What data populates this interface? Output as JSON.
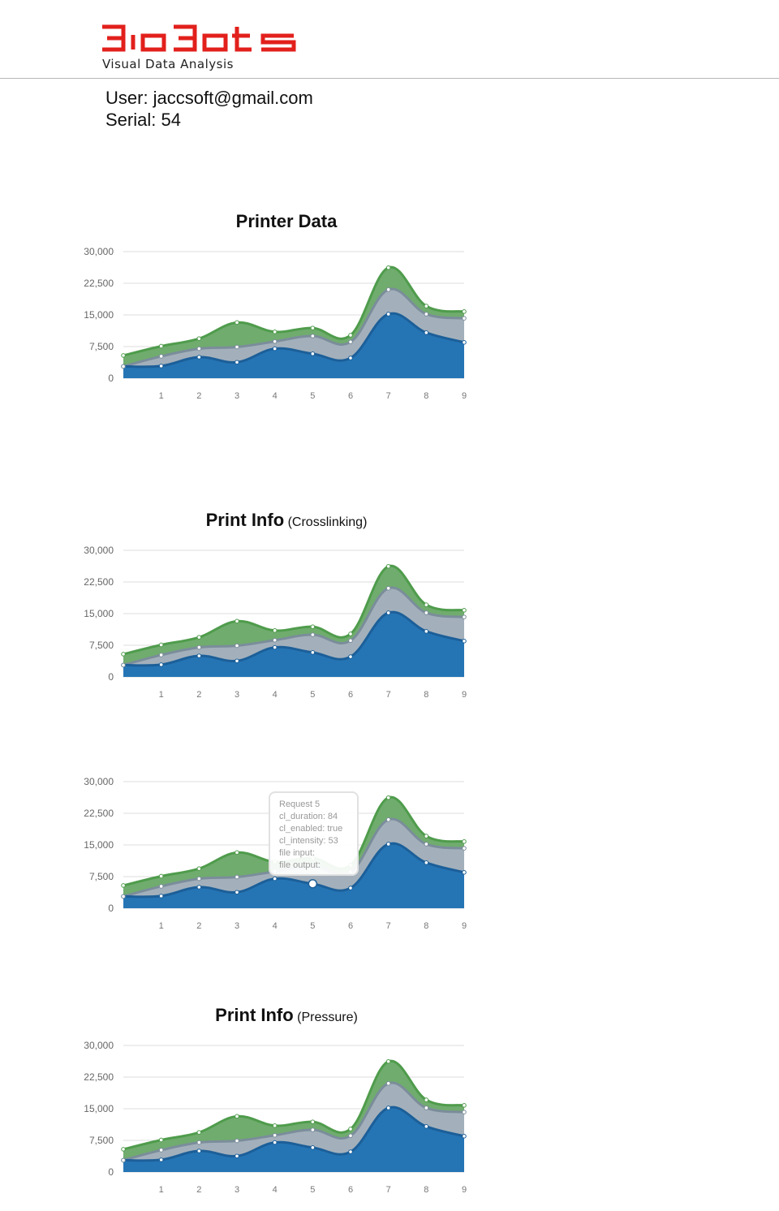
{
  "header": {
    "logo_text": "BioBots",
    "tagline": "Visual Data Analysis"
  },
  "user": {
    "user_line": "User: jaccsoft@gmail.com",
    "serial_line": "Serial: 54"
  },
  "colors": {
    "logo": "#e2201c",
    "blue": "#2575b5",
    "blue_line": "#1c5f99",
    "gray": "#a3b0bb",
    "gray_line": "#7b8d9b",
    "green": "#70ac6e",
    "green_line": "#4f9c4c"
  },
  "charts": [
    {
      "title": "Printer Data",
      "subtitle": ""
    },
    {
      "title": "Print Info",
      "subtitle": "(Crosslinking)"
    },
    {
      "title": "",
      "subtitle": ""
    },
    {
      "title": "Print Info",
      "subtitle": "(Pressure)"
    }
  ],
  "tooltip": {
    "lines": [
      "Request 5",
      "cl_duration: 84",
      "cl_enabled: true",
      "cl_intensity: 53",
      "file input:",
      "file output:"
    ]
  },
  "chart_data": [
    {
      "type": "area",
      "stacked": true,
      "title": "Printer Data",
      "x": [
        0,
        1,
        2,
        3,
        4,
        5,
        6,
        7,
        8,
        9
      ],
      "x_tick_labels": [
        "1",
        "2",
        "3",
        "4",
        "5",
        "6",
        "7",
        "8",
        "9"
      ],
      "y_tick_labels": [
        "0",
        "7,500",
        "15,000",
        "22,500",
        "30,000"
      ],
      "ylim": [
        0,
        30000
      ],
      "grid": true,
      "series": [
        {
          "values": [
            2800,
            2900,
            5000,
            3800,
            7000,
            5800,
            4800,
            15200,
            10800,
            8500
          ]
        },
        {
          "values": [
            2800,
            5200,
            7000,
            7400,
            8700,
            10000,
            8600,
            21000,
            15200,
            14200
          ]
        },
        {
          "values": [
            5400,
            7600,
            9400,
            13200,
            11000,
            11900,
            10200,
            26200,
            17100,
            15800
          ]
        }
      ]
    },
    {
      "type": "area",
      "stacked": true,
      "title": "Print Info (Crosslinking)",
      "x": [
        0,
        1,
        2,
        3,
        4,
        5,
        6,
        7,
        8,
        9
      ],
      "x_tick_labels": [
        "1",
        "2",
        "3",
        "4",
        "5",
        "6",
        "7",
        "8",
        "9"
      ],
      "y_tick_labels": [
        "0",
        "7,500",
        "15,000",
        "22,500",
        "30,000"
      ],
      "ylim": [
        0,
        30000
      ],
      "grid": true,
      "series": [
        {
          "values": [
            2800,
            2900,
            5000,
            3800,
            7000,
            5800,
            4800,
            15200,
            10800,
            8500
          ]
        },
        {
          "values": [
            2800,
            5200,
            7000,
            7400,
            8700,
            10000,
            8600,
            21000,
            15200,
            14200
          ]
        },
        {
          "values": [
            5400,
            7600,
            9400,
            13200,
            11000,
            11900,
            10200,
            26200,
            17100,
            15800
          ]
        }
      ]
    },
    {
      "type": "area",
      "stacked": true,
      "title": "",
      "x": [
        0,
        1,
        2,
        3,
        4,
        5,
        6,
        7,
        8,
        9
      ],
      "x_tick_labels": [
        "1",
        "2",
        "3",
        "4",
        "5",
        "6",
        "7",
        "8",
        "9"
      ],
      "y_tick_labels": [
        "0",
        "7,500",
        "15,000",
        "22,500",
        "30,000"
      ],
      "ylim": [
        0,
        30000
      ],
      "grid": true,
      "highlight_index": 5,
      "series": [
        {
          "values": [
            2800,
            2900,
            5000,
            3800,
            7000,
            5800,
            4800,
            15200,
            10800,
            8500
          ]
        },
        {
          "values": [
            2800,
            5200,
            7000,
            7400,
            8700,
            10000,
            8600,
            21000,
            15200,
            14200
          ]
        },
        {
          "values": [
            5400,
            7600,
            9400,
            13200,
            11000,
            11900,
            10200,
            26200,
            17100,
            15800
          ]
        }
      ]
    },
    {
      "type": "area",
      "stacked": true,
      "title": "Print Info (Pressure)",
      "x": [
        0,
        1,
        2,
        3,
        4,
        5,
        6,
        7,
        8,
        9
      ],
      "x_tick_labels": [
        "1",
        "2",
        "3",
        "4",
        "5",
        "6",
        "7",
        "8",
        "9"
      ],
      "y_tick_labels": [
        "0",
        "7,500",
        "15,000",
        "22,500",
        "30,000"
      ],
      "ylim": [
        0,
        30000
      ],
      "grid": true,
      "series": [
        {
          "values": [
            2800,
            2900,
            5000,
            3800,
            7000,
            5800,
            4800,
            15200,
            10800,
            8500
          ]
        },
        {
          "values": [
            2800,
            5200,
            7000,
            7400,
            8700,
            10000,
            8600,
            21000,
            15200,
            14200
          ]
        },
        {
          "values": [
            5400,
            7600,
            9400,
            13200,
            11000,
            11900,
            10200,
            26200,
            17100,
            15800
          ]
        }
      ]
    }
  ]
}
